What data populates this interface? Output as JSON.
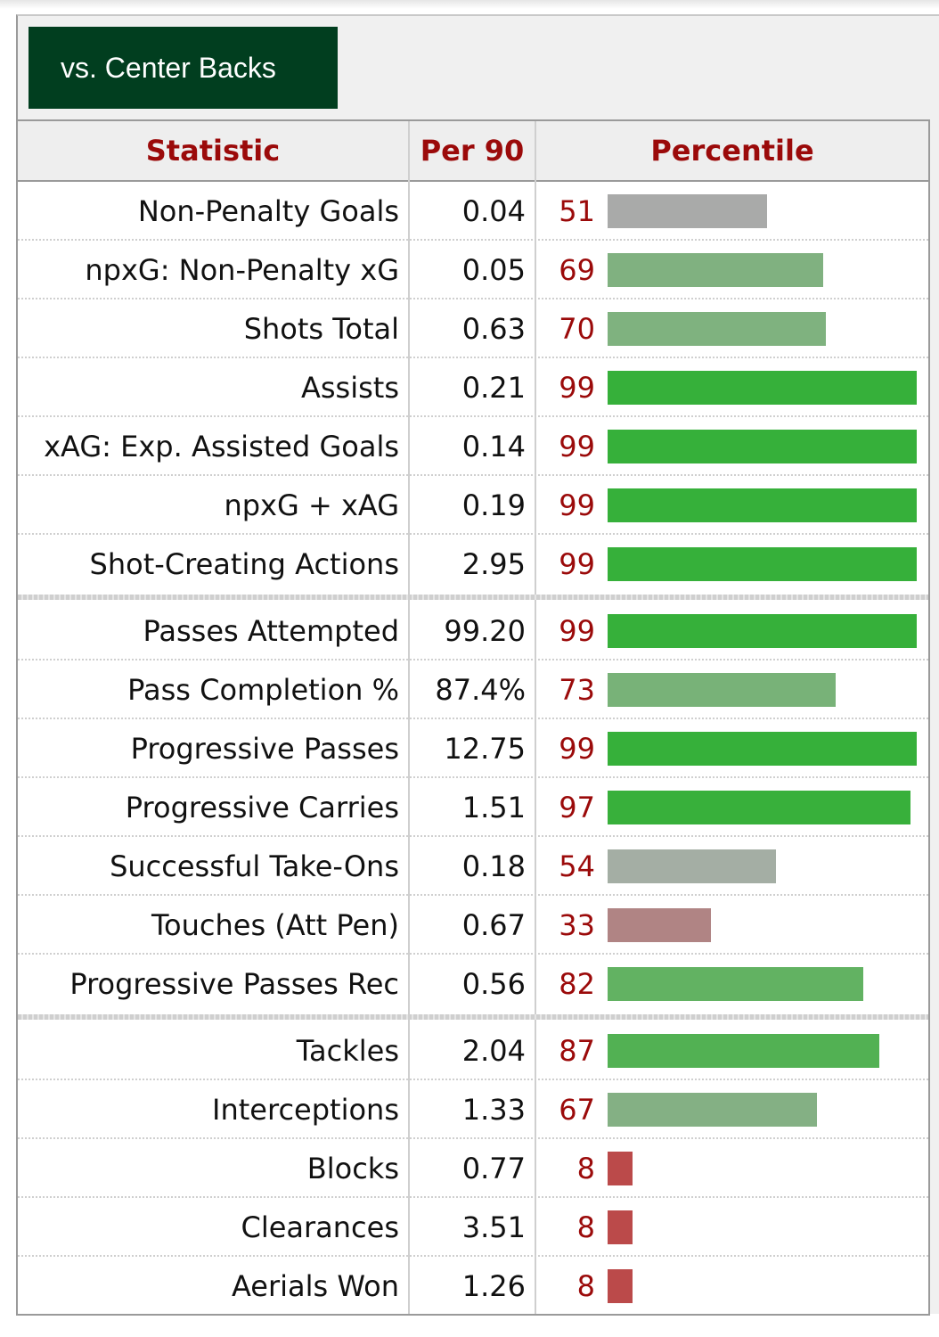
{
  "tab_label": "vs. Center Backs",
  "headers": {
    "statistic": "Statistic",
    "per90": "Per 90",
    "percentile": "Percentile"
  },
  "colors": {
    "header_text": "#9b0a0a",
    "tab_bg": "#013e1f",
    "bar_high": "#36b03a",
    "bar_good": "#62b262",
    "bar_mid_green": "#7fb17f",
    "bar_neutral": "#a7a7a7",
    "bar_low_mid": "#b08484",
    "bar_low": "#bb4a4a"
  },
  "groups": [
    {
      "rows": [
        {
          "stat": "Non-Penalty Goals",
          "per90": "0.04",
          "percentile": "51",
          "pct_value": 51,
          "color": "#a9aaa9"
        },
        {
          "stat": "npxG: Non-Penalty xG",
          "per90": "0.05",
          "percentile": "69",
          "pct_value": 69,
          "color": "#80b180"
        },
        {
          "stat": "Shots Total",
          "per90": "0.63",
          "percentile": "70",
          "pct_value": 70,
          "color": "#7fb27f"
        },
        {
          "stat": "Assists",
          "per90": "0.21",
          "percentile": "99",
          "pct_value": 99,
          "color": "#36b03a"
        },
        {
          "stat": "xAG: Exp. Assisted Goals",
          "per90": "0.14",
          "percentile": "99",
          "pct_value": 99,
          "color": "#36b03a"
        },
        {
          "stat": "npxG + xAG",
          "per90": "0.19",
          "percentile": "99",
          "pct_value": 99,
          "color": "#36b03a"
        },
        {
          "stat": "Shot-Creating Actions",
          "per90": "2.95",
          "percentile": "99",
          "pct_value": 99,
          "color": "#36b03a"
        }
      ]
    },
    {
      "rows": [
        {
          "stat": "Passes Attempted",
          "per90": "99.20",
          "percentile": "99",
          "pct_value": 99,
          "color": "#36b03a"
        },
        {
          "stat": "Pass Completion %",
          "per90": "87.4%",
          "percentile": "73",
          "pct_value": 73,
          "color": "#78b278"
        },
        {
          "stat": "Progressive Passes",
          "per90": "12.75",
          "percentile": "99",
          "pct_value": 99,
          "color": "#36b03a"
        },
        {
          "stat": "Progressive Carries",
          "per90": "1.51",
          "percentile": "97",
          "pct_value": 97,
          "color": "#38b03b"
        },
        {
          "stat": "Successful Take-Ons",
          "per90": "0.18",
          "percentile": "54",
          "pct_value": 54,
          "color": "#a4aea4"
        },
        {
          "stat": "Touches (Att Pen)",
          "per90": "0.67",
          "percentile": "33",
          "pct_value": 33,
          "color": "#b08484"
        },
        {
          "stat": "Progressive Passes Rec",
          "per90": "0.56",
          "percentile": "82",
          "pct_value": 82,
          "color": "#62b262"
        }
      ]
    },
    {
      "rows": [
        {
          "stat": "Tackles",
          "per90": "2.04",
          "percentile": "87",
          "pct_value": 87,
          "color": "#52b153"
        },
        {
          "stat": "Interceptions",
          "per90": "1.33",
          "percentile": "67",
          "pct_value": 67,
          "color": "#84b084"
        },
        {
          "stat": "Blocks",
          "per90": "0.77",
          "percentile": "8",
          "pct_value": 8,
          "color": "#bb4a4a"
        },
        {
          "stat": "Clearances",
          "per90": "3.51",
          "percentile": "8",
          "pct_value": 8,
          "color": "#bb4a4a"
        },
        {
          "stat": "Aerials Won",
          "per90": "1.26",
          "percentile": "8",
          "pct_value": 8,
          "color": "#bb4a4a"
        }
      ]
    }
  ]
}
